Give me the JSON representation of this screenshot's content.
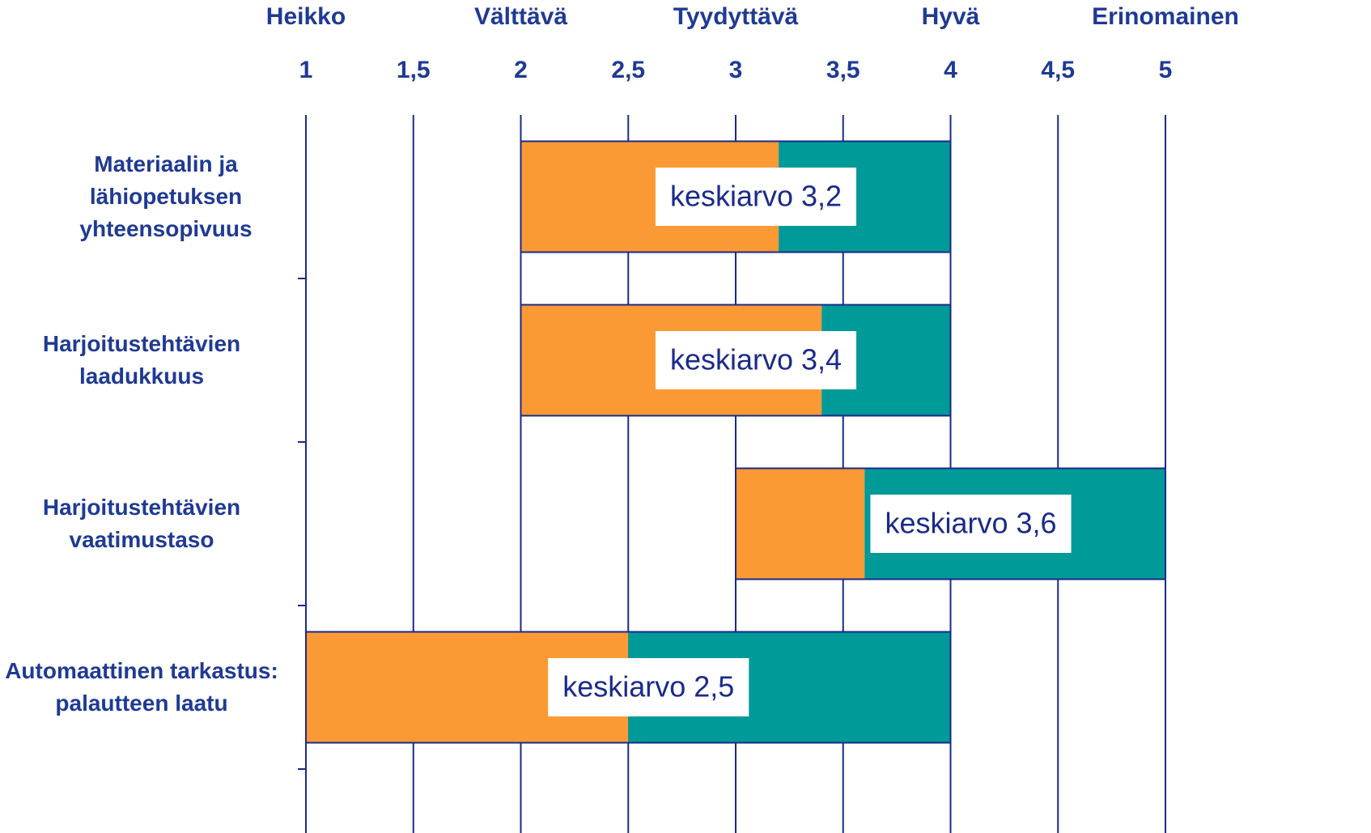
{
  "chart_data": {
    "type": "range_bar",
    "categories": [
      "Materiaalin ja lähiopetuksen yhteensopivuus",
      "Harjoitustehtävien laadukkuus",
      "Harjoitustehtävien vaatimustaso",
      "Automaattinen tarkastus: palautteen laatu"
    ],
    "low": [
      2,
      2,
      3,
      1
    ],
    "values": [
      3.2,
      3.4,
      3.6,
      2.5
    ],
    "value_labels": [
      "keskiarvo 3,2",
      "keskiarvo 3,4",
      "keskiarvo 3,6",
      "keskiarvo 2,5"
    ],
    "high": [
      4,
      4,
      5,
      4
    ],
    "low_color": "#fb9a34",
    "high_color": "#009a98",
    "xlim": [
      1,
      5
    ],
    "xticks": [
      1,
      {
        "value": 1.5,
        "label": "1,5"
      },
      2,
      {
        "value": 2.5,
        "label": "2,5"
      },
      3,
      {
        "value": 3.5,
        "label": "3,5"
      },
      4,
      {
        "value": 4.5,
        "label": "4,5"
      },
      5
    ],
    "scale_labels": [
      {
        "value": 1,
        "label": "Heikko"
      },
      {
        "value": 2,
        "label": "Välttävä"
      },
      {
        "value": 3,
        "label": "Tyydyttävä"
      },
      {
        "value": 4,
        "label": "Hyvä"
      },
      {
        "value": 5,
        "label": "Erinomainen"
      }
    ],
    "grid": true
  }
}
